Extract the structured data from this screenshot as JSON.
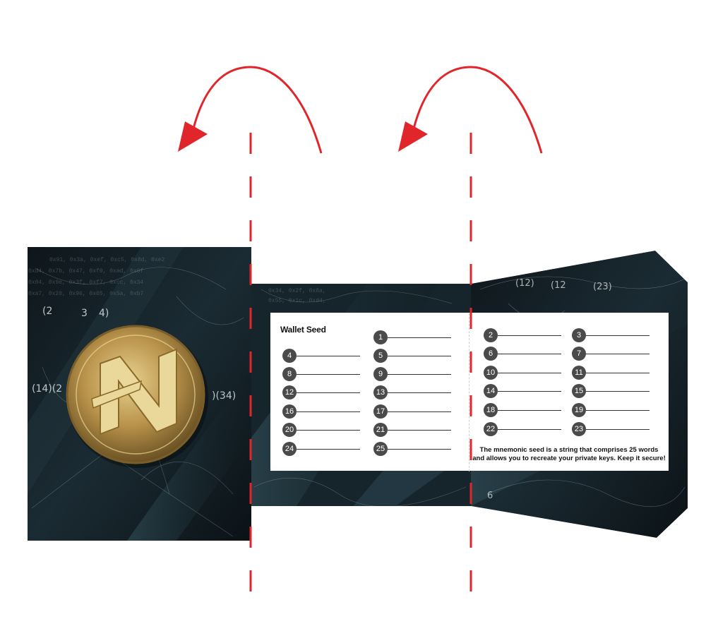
{
  "wallet": {
    "title": "Wallet Seed",
    "slots": [
      "1",
      "2",
      "3",
      "4",
      "5",
      "6",
      "7",
      "8",
      "9",
      "10",
      "11",
      "12",
      "13",
      "14",
      "15",
      "16",
      "17",
      "18",
      "19",
      "20",
      "21",
      "22",
      "23",
      "24",
      "25"
    ],
    "note_line1": "The mnemonic seed is a string that comprises 25 words",
    "note_line2": "and allows you to recreate your private keys. Keep it secure!"
  },
  "colors": {
    "fold_guide": "#e0262b",
    "card_bg": "#ffffff",
    "number_badge": "#4a4a4a",
    "background_dark": "#0f1a1f",
    "coin_gold": "#c9a85a"
  },
  "icons": {
    "logo": "gold-coin-N-icon",
    "fold_arrows": "curved-arrow-icon"
  }
}
